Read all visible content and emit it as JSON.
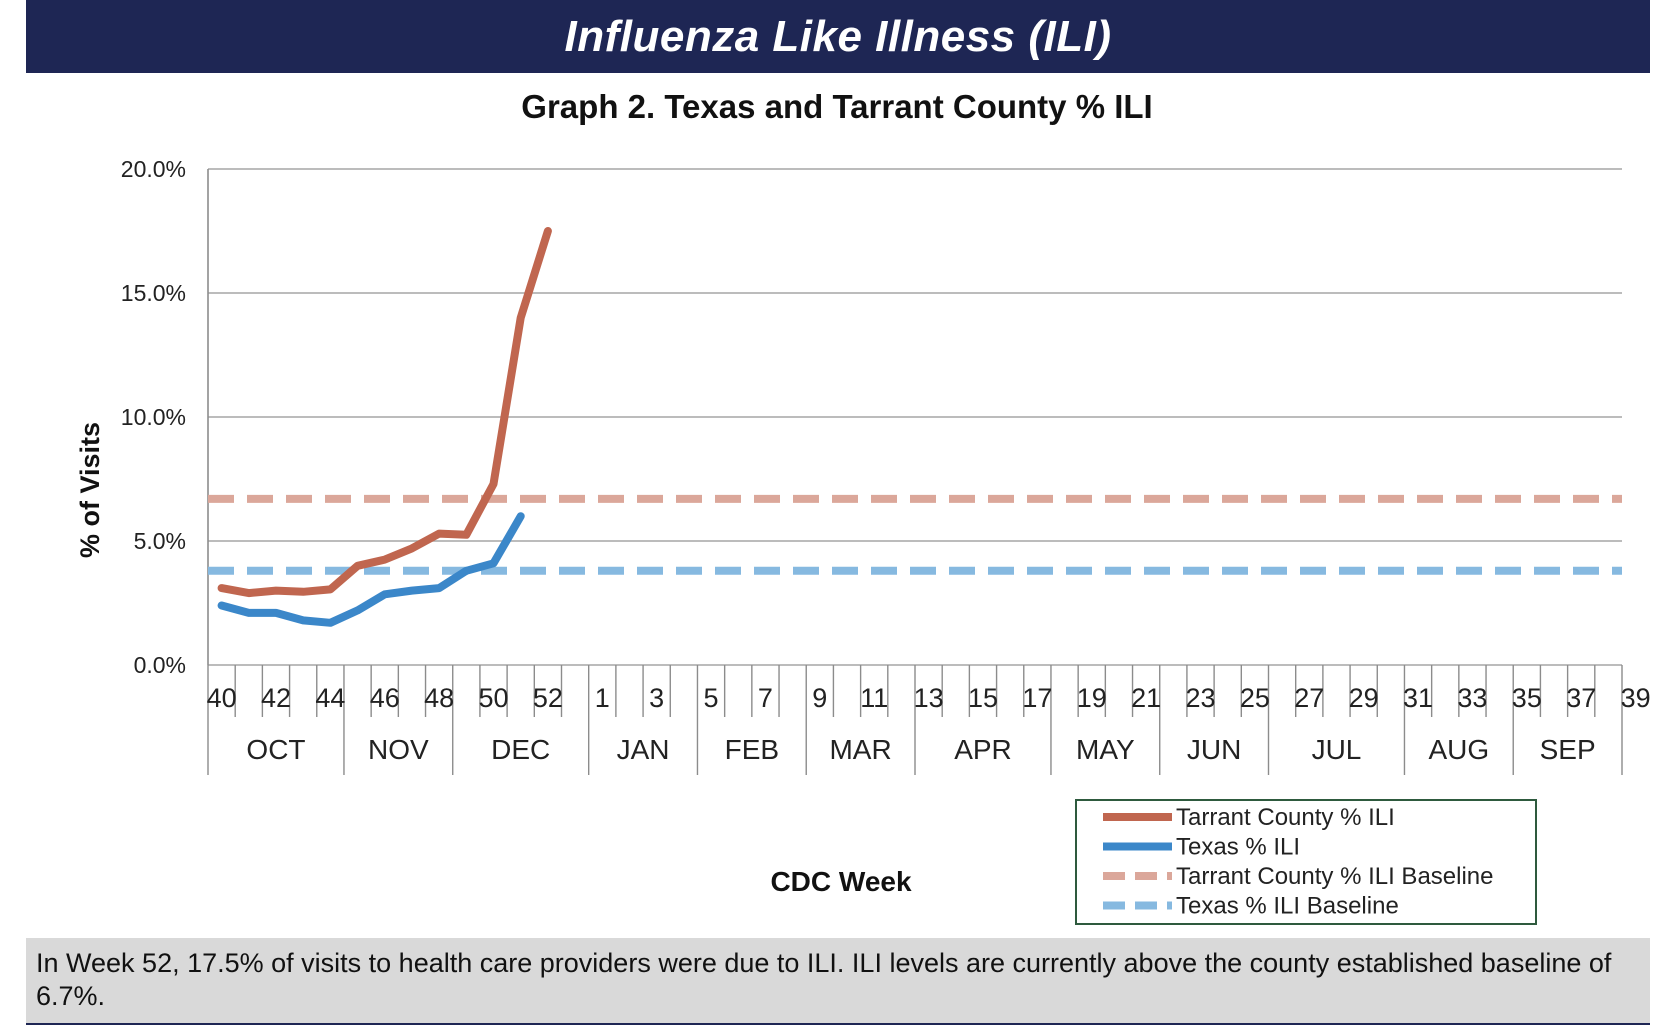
{
  "banner": {
    "title": "Influenza Like Illness (ILI)"
  },
  "footer": {
    "text": "In Week 52, 17.5% of visits to health care providers were due to ILI. ILI levels are currently above the county established baseline of 6.7%."
  },
  "chart_data": {
    "type": "line",
    "title": "Graph 2. Texas and Tarrant County % ILI",
    "xlabel": "CDC Week",
    "ylabel": "% of Visits",
    "ylim": [
      0,
      20
    ],
    "y_ticks": [
      "0.0%",
      "5.0%",
      "10.0%",
      "15.0%",
      "20.0%"
    ],
    "y_tick_values": [
      0,
      5,
      10,
      15,
      20
    ],
    "weeks": [
      40,
      41,
      42,
      43,
      44,
      45,
      46,
      47,
      48,
      49,
      50,
      51,
      52,
      1,
      2,
      3,
      4,
      5,
      6,
      7,
      8,
      9,
      10,
      11,
      12,
      13,
      14,
      15,
      16,
      17,
      18,
      19,
      20,
      21,
      22,
      23,
      24,
      25,
      26,
      27,
      28,
      29,
      30,
      31,
      32,
      33,
      34,
      35,
      36,
      37,
      38,
      39
    ],
    "week_tick_labels": [
      "40",
      "42",
      "44",
      "46",
      "48",
      "50",
      "52",
      "1",
      "3",
      "5",
      "7",
      "9",
      "11",
      "13",
      "15",
      "17",
      "19",
      "21",
      "23",
      "25",
      "27",
      "29",
      "31",
      "33",
      "35",
      "37",
      "39"
    ],
    "months": [
      {
        "label": "OCT",
        "start": 0,
        "end": 5
      },
      {
        "label": "NOV",
        "start": 5,
        "end": 9
      },
      {
        "label": "DEC",
        "start": 9,
        "end": 14
      },
      {
        "label": "JAN",
        "start": 14,
        "end": 18
      },
      {
        "label": "FEB",
        "start": 18,
        "end": 22
      },
      {
        "label": "MAR",
        "start": 22,
        "end": 26
      },
      {
        "label": "APR",
        "start": 26,
        "end": 31
      },
      {
        "label": "MAY",
        "start": 31,
        "end": 35
      },
      {
        "label": "JUN",
        "start": 35,
        "end": 39
      },
      {
        "label": "JUL",
        "start": 39,
        "end": 44
      },
      {
        "label": "AUG",
        "start": 44,
        "end": 48
      },
      {
        "label": "SEP",
        "start": 48,
        "end": 53
      }
    ],
    "series": [
      {
        "name": "Tarrant County % ILI",
        "color": "#c0664f",
        "style": "solid",
        "x": [
          40,
          41,
          42,
          43,
          44,
          45,
          46,
          47,
          48,
          49,
          50,
          51,
          52
        ],
        "values": [
          3.1,
          2.9,
          3.0,
          2.95,
          3.05,
          4.0,
          4.25,
          4.7,
          5.3,
          5.25,
          7.3,
          14.0,
          17.5
        ]
      },
      {
        "name": "Texas % ILI",
        "color": "#3b87c9",
        "style": "solid",
        "x": [
          40,
          41,
          42,
          43,
          44,
          45,
          46,
          47,
          48,
          49,
          50,
          51
        ],
        "values": [
          2.4,
          2.1,
          2.1,
          1.8,
          1.7,
          2.2,
          2.85,
          3.0,
          3.1,
          3.8,
          4.1,
          6.0
        ]
      },
      {
        "name": "Tarrant County % ILI Baseline",
        "color": "#dba79a",
        "style": "dashed",
        "values": [
          6.7
        ]
      },
      {
        "name": "Texas % ILI Baseline",
        "color": "#86b9e0",
        "style": "dashed",
        "values": [
          3.8
        ]
      }
    ],
    "grid": true,
    "legend_position": "bottom-right"
  }
}
